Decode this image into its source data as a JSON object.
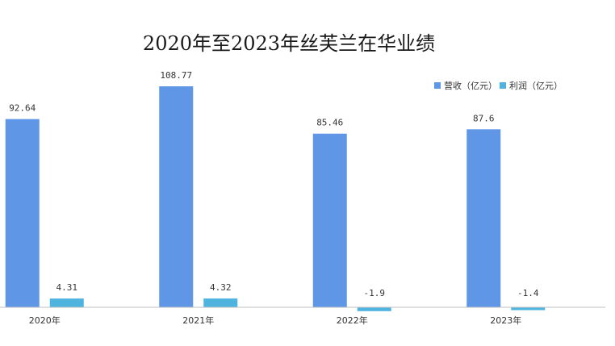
{
  "chart_data": {
    "type": "bar",
    "title": "2020年至2023年丝芙兰在华业绩",
    "xlabel": "",
    "ylabel": "",
    "categories": [
      "2020年",
      "2021年",
      "2022年",
      "2023年"
    ],
    "series": [
      {
        "name": "营收（亿元）",
        "values": [
          92.64,
          108.77,
          85.46,
          87.6
        ],
        "labels": [
          "92.64",
          "108.77",
          "85.46",
          "87.6"
        ],
        "color": "#6096e6"
      },
      {
        "name": "利润（亿元）",
        "values": [
          4.31,
          4.32,
          -1.9,
          -1.4
        ],
        "labels": [
          "4.31",
          "4.32",
          "-1.9",
          "-1.4"
        ],
        "color": "#4fb3e0"
      }
    ],
    "ylim": [
      -2,
      120
    ],
    "grid": false,
    "legend_position": "top-right"
  }
}
